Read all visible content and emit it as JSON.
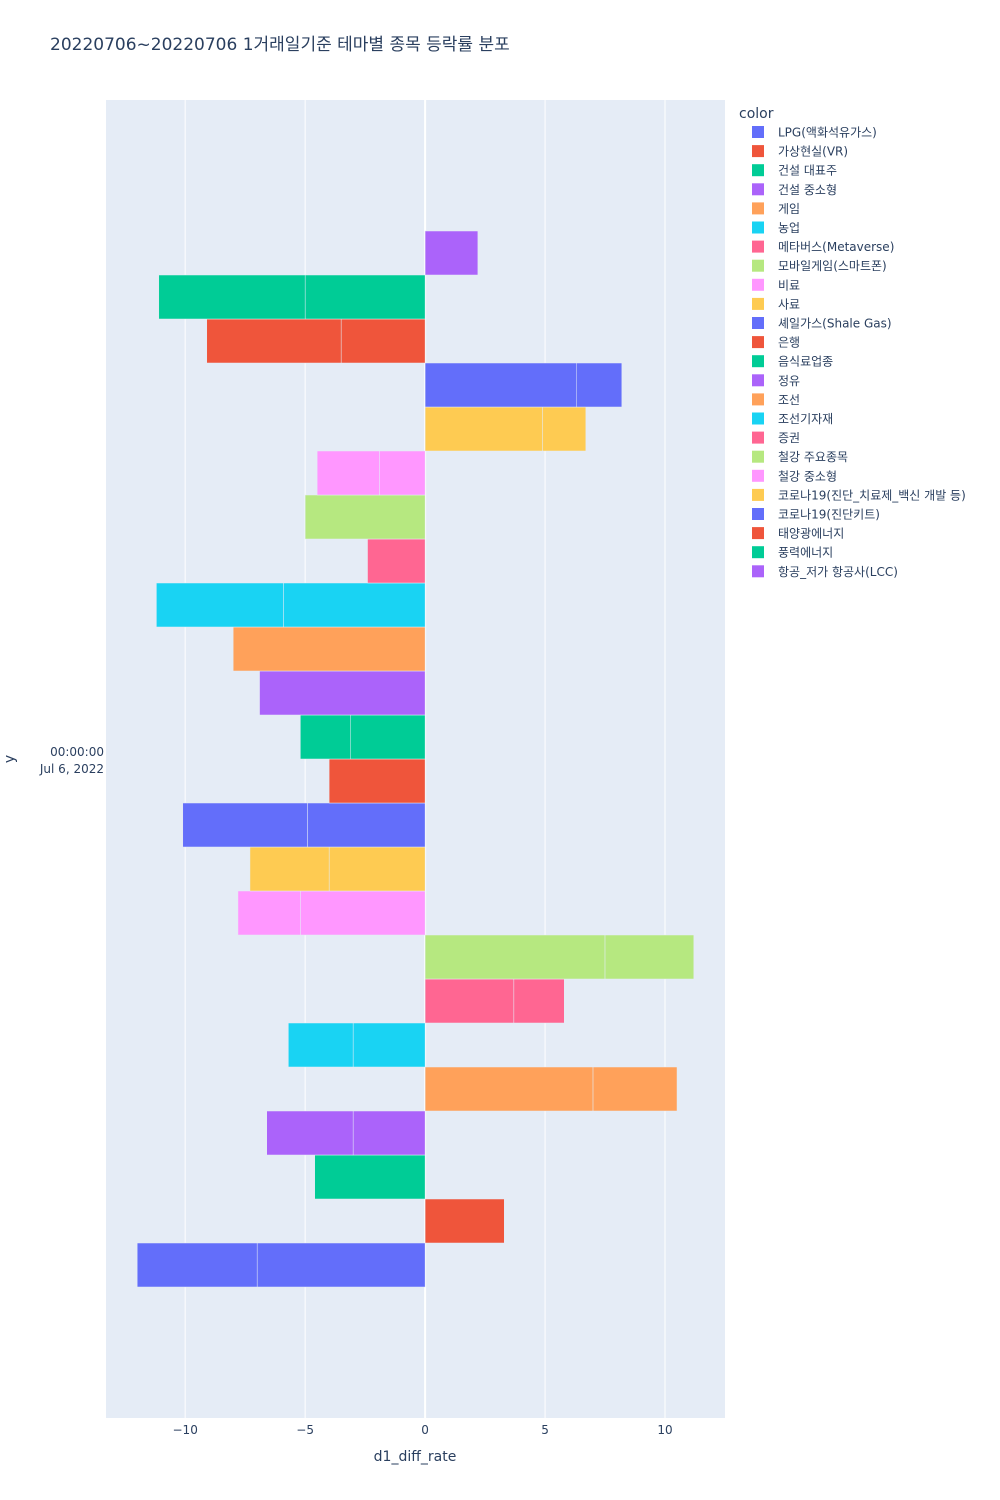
{
  "chart_data": {
    "type": "bar",
    "orientation": "horizontal",
    "barmode": "relative",
    "title": "20220706~20220706 1거래일기준 테마별 종목 등락률 분포",
    "xlabel": "d1_diff_rate",
    "ylabel": "y",
    "y_tick_line1": "00:00:00",
    "y_tick_line2": "Jul 6, 2022",
    "xlim": [
      -13.3,
      12.5
    ],
    "xticks": [
      -10,
      -5,
      0,
      5,
      10
    ],
    "xtick_labels": [
      "−10",
      "−5",
      "0",
      "5",
      "10"
    ],
    "legend_title": "color",
    "legend_position": "right",
    "series": [
      {
        "name": "LPG(액화석유가스)",
        "color": "#636efa",
        "segments": [
          -7.0,
          -5.0
        ]
      },
      {
        "name": "가상현실(VR)",
        "color": "#EF553B",
        "segments": [
          3.3
        ]
      },
      {
        "name": "건설 대표주",
        "color": "#00cc96",
        "segments": [
          -4.6
        ]
      },
      {
        "name": "건설 중소형",
        "color": "#ab63fa",
        "segments": [
          -3.0,
          -3.6
        ]
      },
      {
        "name": "게임",
        "color": "#FFA15A",
        "segments": [
          7.0,
          3.5
        ]
      },
      {
        "name": "농업",
        "color": "#19d3f3",
        "segments": [
          -3.0,
          -2.7
        ]
      },
      {
        "name": "메타버스(Metaverse)",
        "color": "#FF6692",
        "segments": [
          3.7,
          2.1
        ]
      },
      {
        "name": "모바일게임(스마트폰)",
        "color": "#B6E880",
        "segments": [
          7.5,
          3.7
        ]
      },
      {
        "name": "비료",
        "color": "#FF97FF",
        "segments": [
          -5.2,
          -2.6
        ]
      },
      {
        "name": "사료",
        "color": "#FECB52",
        "segments": [
          -4.0,
          -3.3
        ]
      },
      {
        "name": "셰일가스(Shale Gas)",
        "color": "#636efa",
        "segments": [
          -4.9,
          -5.2
        ]
      },
      {
        "name": "은행",
        "color": "#EF553B",
        "segments": [
          -4.0
        ]
      },
      {
        "name": "음식료업종",
        "color": "#00cc96",
        "segments": [
          -3.1,
          -2.1
        ]
      },
      {
        "name": "정유",
        "color": "#ab63fa",
        "segments": [
          -6.9
        ]
      },
      {
        "name": "조선",
        "color": "#FFA15A",
        "segments": [
          -8.0
        ]
      },
      {
        "name": "조선기자재",
        "color": "#19d3f3",
        "segments": [
          -5.9,
          -5.3
        ]
      },
      {
        "name": "증권",
        "color": "#FF6692",
        "segments": [
          -2.4
        ]
      },
      {
        "name": "철강 주요종목",
        "color": "#B6E880",
        "segments": [
          -5.0
        ]
      },
      {
        "name": "철강 중소형",
        "color": "#FF97FF",
        "segments": [
          -1.9,
          -2.6
        ]
      },
      {
        "name": "코로나19(진단_치료제_백신 개발 등)",
        "color": "#FECB52",
        "segments": [
          4.9,
          1.8
        ]
      },
      {
        "name": "코로나19(진단키트)",
        "color": "#636efa",
        "segments": [
          6.3,
          1.9
        ]
      },
      {
        "name": "태양광에너지",
        "color": "#EF553B",
        "segments": [
          -3.5,
          -5.6
        ]
      },
      {
        "name": "풍력에너지",
        "color": "#00cc96",
        "segments": [
          -5.0,
          -6.1
        ]
      },
      {
        "name": "항공_저가 항공사(LCC)",
        "color": "#ab63fa",
        "segments": [
          2.2
        ]
      }
    ]
  }
}
